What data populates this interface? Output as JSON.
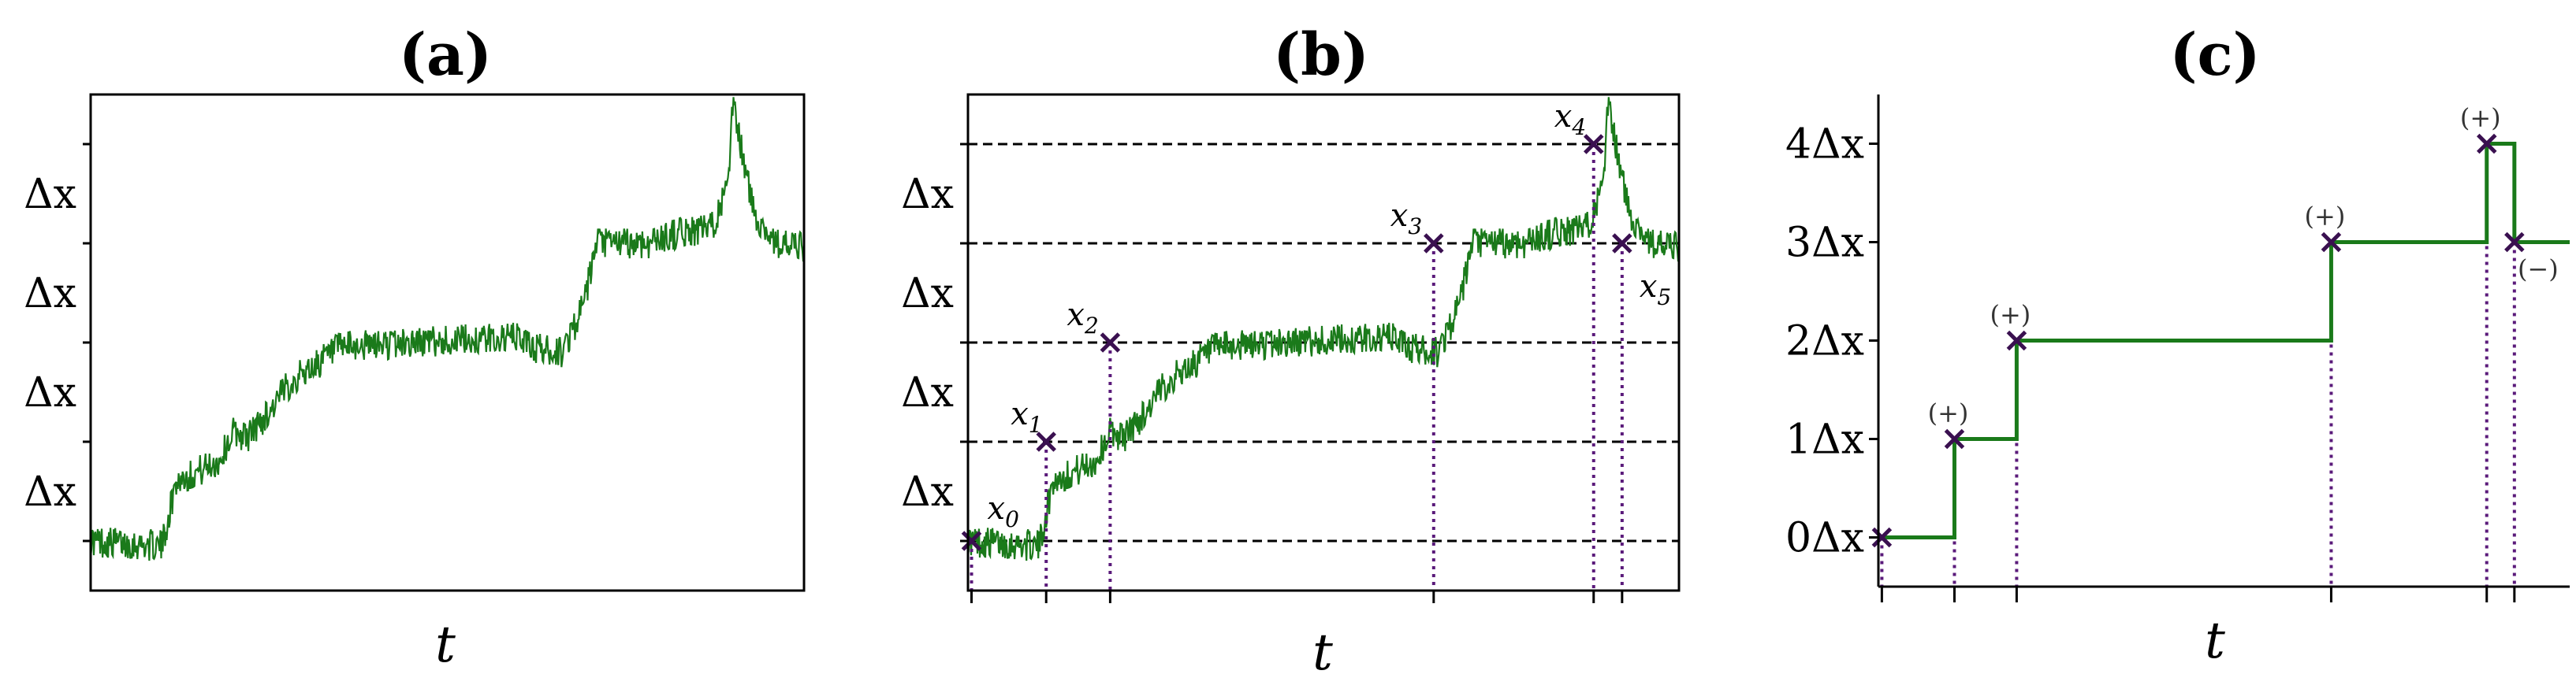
{
  "chart_data": [
    {
      "panel_title": "(a)",
      "type": "line",
      "xlabel": "t",
      "ylabel": "",
      "y_ticks": [
        {
          "value": 0,
          "label": ""
        },
        {
          "value": 1,
          "label": "Δx"
        },
        {
          "value": 2,
          "label": "Δx"
        },
        {
          "value": 3,
          "label": "Δx"
        },
        {
          "value": 4,
          "label": "Δx"
        }
      ],
      "xlim": [
        0,
        1
      ],
      "ylim": [
        -0.5,
        4.5
      ],
      "series": [
        {
          "color": "#1a7a1a",
          "noisy": true,
          "path": [
            [
              0,
              0
            ],
            [
              0.1,
              -0.05
            ],
            [
              0.12,
              0.6
            ],
            [
              0.18,
              0.8
            ],
            [
              0.2,
              1.1
            ],
            [
              0.22,
              1.05
            ],
            [
              0.25,
              1.3
            ],
            [
              0.28,
              1.6
            ],
            [
              0.35,
              1.95
            ],
            [
              0.45,
              2.0
            ],
            [
              0.6,
              2.05
            ],
            [
              0.62,
              1.95
            ],
            [
              0.66,
              1.9
            ],
            [
              0.69,
              2.35
            ],
            [
              0.71,
              3.0
            ],
            [
              0.78,
              3.0
            ],
            [
              0.82,
              3.1
            ],
            [
              0.87,
              3.15
            ],
            [
              0.895,
              3.6
            ],
            [
              0.9,
              4.4
            ],
            [
              0.93,
              3.3
            ],
            [
              0.96,
              3.0
            ],
            [
              1.0,
              2.95
            ]
          ]
        }
      ]
    },
    {
      "panel_title": "(b)",
      "type": "line",
      "xlabel": "t",
      "ylabel": "",
      "y_ticks": [
        {
          "value": 0,
          "label": ""
        },
        {
          "value": 1,
          "label": "Δx"
        },
        {
          "value": 2,
          "label": "Δx"
        },
        {
          "value": 3,
          "label": "Δx"
        },
        {
          "value": 4,
          "label": "Δx"
        }
      ],
      "level_lines": [
        0,
        1,
        2,
        3,
        4
      ],
      "xlim": [
        0,
        1
      ],
      "ylim": [
        -0.5,
        4.5
      ],
      "series": [
        {
          "color": "#1a7a1a",
          "noisy": true,
          "path": [
            [
              0,
              0
            ],
            [
              0.1,
              -0.05
            ],
            [
              0.12,
              0.6
            ],
            [
              0.18,
              0.8
            ],
            [
              0.2,
              1.1
            ],
            [
              0.22,
              1.05
            ],
            [
              0.25,
              1.3
            ],
            [
              0.28,
              1.6
            ],
            [
              0.35,
              1.95
            ],
            [
              0.45,
              2.0
            ],
            [
              0.6,
              2.05
            ],
            [
              0.62,
              1.95
            ],
            [
              0.66,
              1.9
            ],
            [
              0.69,
              2.35
            ],
            [
              0.71,
              3.0
            ],
            [
              0.78,
              3.0
            ],
            [
              0.82,
              3.1
            ],
            [
              0.87,
              3.15
            ],
            [
              0.895,
              3.6
            ],
            [
              0.9,
              4.4
            ],
            [
              0.93,
              3.3
            ],
            [
              0.96,
              3.0
            ],
            [
              1.0,
              2.95
            ]
          ]
        }
      ],
      "crossings": [
        {
          "label": "x0",
          "sub": "0",
          "t": 0.005,
          "y": 0
        },
        {
          "label": "x1",
          "sub": "1",
          "t": 0.11,
          "y": 1
        },
        {
          "label": "x2",
          "sub": "2",
          "t": 0.2,
          "y": 2
        },
        {
          "label": "x3",
          "sub": "3",
          "t": 0.655,
          "y": 3
        },
        {
          "label": "x4",
          "sub": "4",
          "t": 0.88,
          "y": 4
        },
        {
          "label": "x5",
          "sub": "5",
          "t": 0.92,
          "y": 3
        }
      ],
      "annotation_symbol": "x"
    },
    {
      "panel_title": "(c)",
      "type": "line",
      "step": true,
      "xlabel": "t",
      "ylabel": "",
      "y_ticks": [
        {
          "value": 0,
          "label": "0Δx"
        },
        {
          "value": 1,
          "label": "1Δx"
        },
        {
          "value": 2,
          "label": "2Δx"
        },
        {
          "value": 3,
          "label": "3Δx"
        },
        {
          "value": 4,
          "label": "4Δx"
        }
      ],
      "xlim": [
        0,
        1
      ],
      "ylim": [
        -0.5,
        4.5
      ],
      "series": [
        {
          "color": "#1a7a1a",
          "steps": [
            [
              0.005,
              0
            ],
            [
              0.11,
              1
            ],
            [
              0.2,
              2
            ],
            [
              0.655,
              3
            ],
            [
              0.88,
              4
            ],
            [
              0.92,
              3
            ]
          ]
        }
      ],
      "events": [
        {
          "t": 0.005,
          "y": 0,
          "sign": ""
        },
        {
          "t": 0.11,
          "y": 1,
          "sign": "(+)"
        },
        {
          "t": 0.2,
          "y": 2,
          "sign": "(+)"
        },
        {
          "t": 0.655,
          "y": 3,
          "sign": "(+)"
        },
        {
          "t": 0.88,
          "y": 4,
          "sign": "(+)"
        },
        {
          "t": 0.92,
          "y": 3,
          "sign": "(−)"
        }
      ]
    }
  ],
  "colors": {
    "trace": "#1a7a1a",
    "marker": "#3a1050",
    "dotted": "#5a1a7a"
  }
}
